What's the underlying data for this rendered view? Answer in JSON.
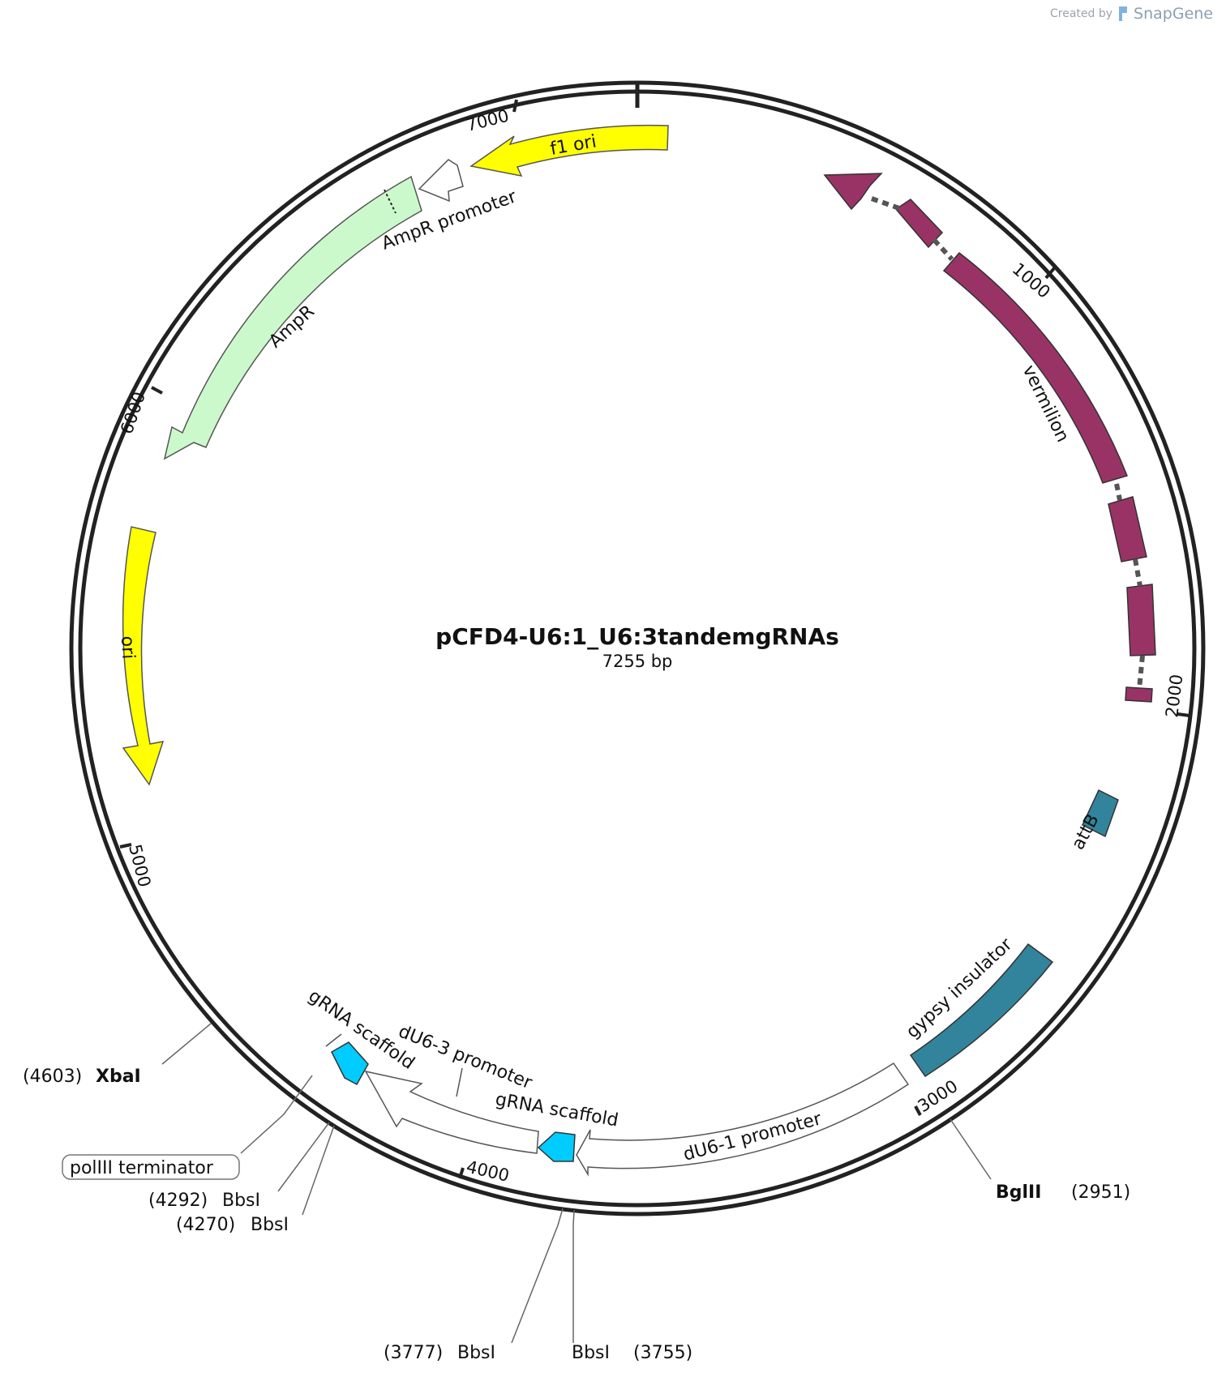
{
  "credit": {
    "prefix": "Created by",
    "brand": "SnapGene"
  },
  "plasmid": {
    "name": "pCFD4-U6:1_U6:3tandemgRNAs",
    "length_label": "7255 bp"
  },
  "ticks": [
    "1000",
    "2000",
    "3000",
    "4000",
    "5000",
    "6000",
    "7000"
  ],
  "features": {
    "f1_ori": "f1 ori",
    "ampr_promoter": "AmpR promoter",
    "ampr": "AmpR",
    "ori": "ori",
    "vermilion": "vermilion",
    "attb": "attB",
    "gypsy_insulator": "gypsy insulator",
    "du6_1_promoter": "dU6-1 promoter",
    "du6_3_promoter": "dU6-3 promoter",
    "grna_scaffold_1": "gRNA scaffold",
    "grna_scaffold_2": "gRNA scaffold",
    "poliii_terminator": "polIII terminator"
  },
  "sites": {
    "xbai": {
      "pos": "(4603)",
      "name": "XbaI"
    },
    "bglii": {
      "pos": "(2951)",
      "name": "BglII"
    },
    "bbsi_4292": {
      "pos": "(4292)",
      "name": "BbsI"
    },
    "bbsi_4270": {
      "pos": "(4270)",
      "name": "BbsI"
    },
    "bbsi_3777": {
      "pos": "(3777)",
      "name": "BbsI"
    },
    "bbsi_3755": {
      "pos": "(3755)",
      "name": "BbsI"
    }
  },
  "colors": {
    "f1_ori": "#ffff00",
    "ori": "#ffff00",
    "ampr": "#ccf9cc",
    "vermilion": "#993366",
    "attb_gypsy": "#31849b",
    "grna": "#00ccff",
    "backbone": "#222222"
  }
}
